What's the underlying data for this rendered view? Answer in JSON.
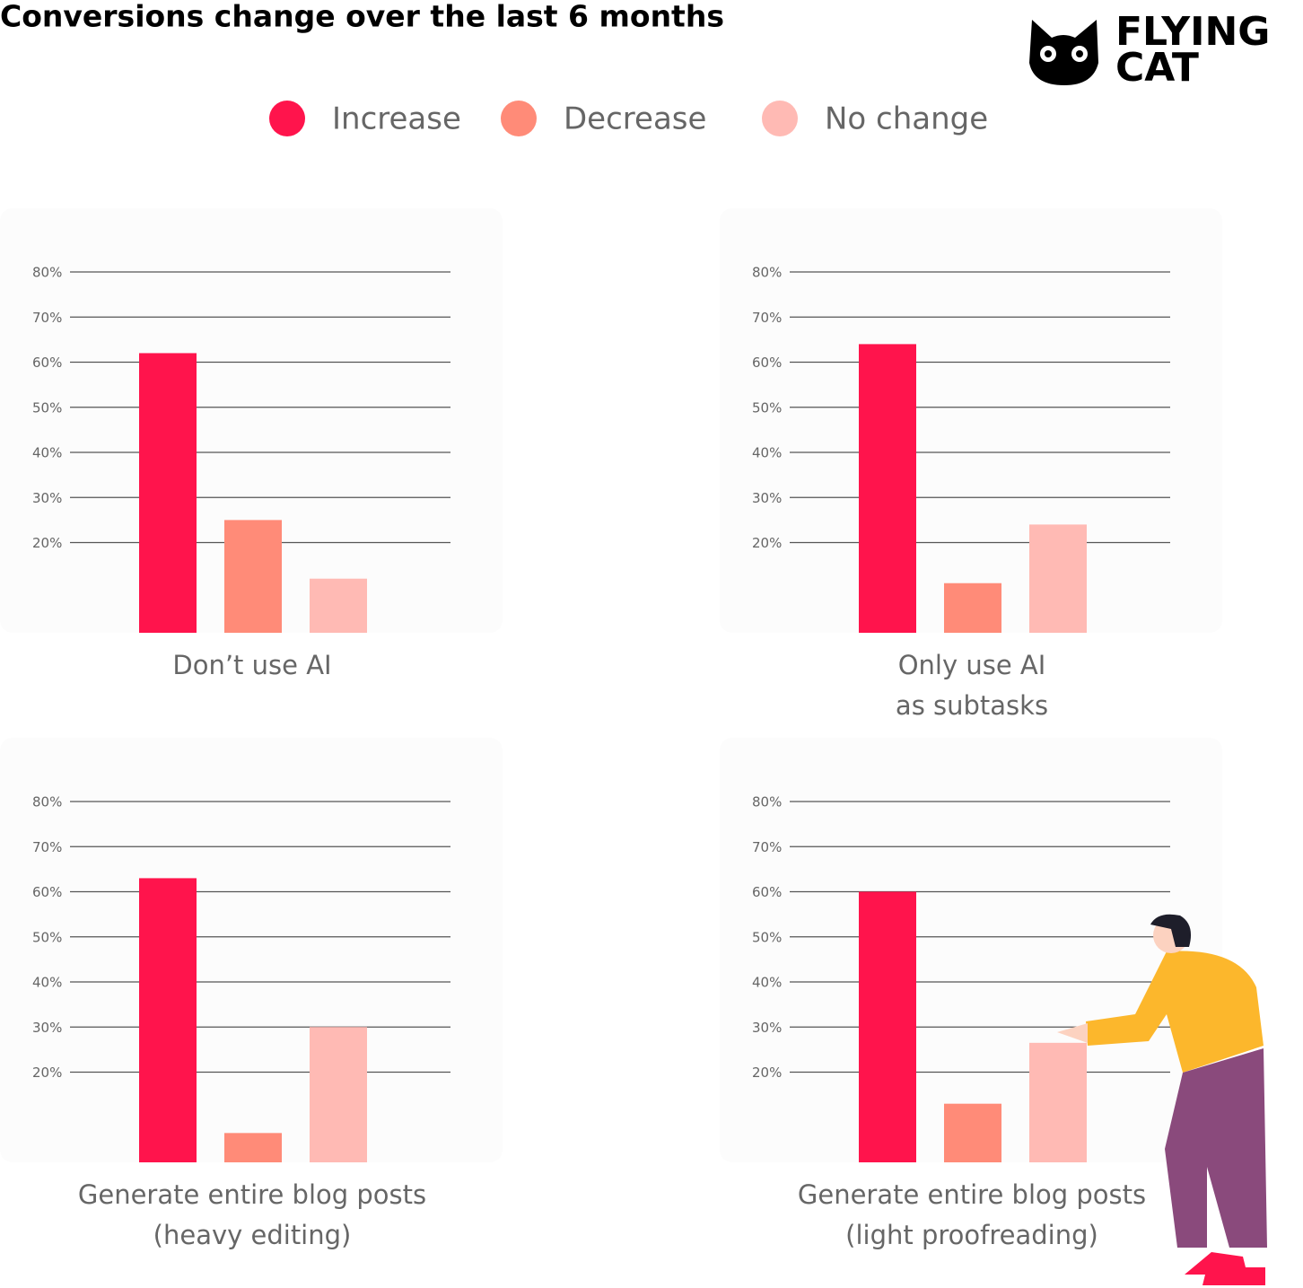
{
  "title": "Conversions change over the last 6 months",
  "brand": [
    "FLYING",
    "CAT"
  ],
  "legend": {
    "names": [
      "Increase",
      "Decrease",
      "No change"
    ],
    "colors": [
      "#ff144c",
      "#ff8b78",
      "#ffbab4"
    ]
  },
  "chart_data": [
    {
      "type": "bar",
      "title": [
        "Don’t use AI"
      ],
      "values": [
        62,
        25,
        12
      ],
      "ylim": [
        0,
        80
      ],
      "yticks": [
        {
          "value": 20,
          "label": "20%"
        },
        {
          "value": 30,
          "label": "30%"
        },
        {
          "value": 40,
          "label": "40%"
        },
        {
          "value": 50,
          "label": "50%"
        },
        {
          "value": 60,
          "label": "60%"
        },
        {
          "value": 70,
          "label": "70%"
        },
        {
          "value": 80,
          "label": "80%"
        }
      ],
      "grid": true
    },
    {
      "type": "bar",
      "title": [
        "Only use AI",
        "as subtasks"
      ],
      "values": [
        64,
        11,
        24
      ],
      "ylim": [
        0,
        80
      ],
      "yticks": [
        {
          "value": 20,
          "label": "20%"
        },
        {
          "value": 30,
          "label": "30%"
        },
        {
          "value": 40,
          "label": "40%"
        },
        {
          "value": 50,
          "label": "50%"
        },
        {
          "value": 60,
          "label": "60%"
        },
        {
          "value": 70,
          "label": "70%"
        },
        {
          "value": 80,
          "label": "80%"
        }
      ],
      "grid": true
    },
    {
      "type": "bar",
      "title": [
        "Generate entire blog posts",
        "(heavy editing)"
      ],
      "values": [
        63,
        6.5,
        30
      ],
      "ylim": [
        0,
        80
      ],
      "yticks": [
        {
          "value": 20,
          "label": "20%"
        },
        {
          "value": 30,
          "label": "30%"
        },
        {
          "value": 40,
          "label": "40%"
        },
        {
          "value": 50,
          "label": "50%"
        },
        {
          "value": 60,
          "label": "60%"
        },
        {
          "value": 70,
          "label": "70%"
        },
        {
          "value": 80,
          "label": "80%"
        }
      ],
      "grid": true
    },
    {
      "type": "bar",
      "title": [
        "Generate entire blog posts",
        "(light proofreading)"
      ],
      "values": [
        60,
        13,
        26.5
      ],
      "ylim": [
        0,
        80
      ],
      "yticks": [
        {
          "value": 20,
          "label": "20%"
        },
        {
          "value": 30,
          "label": "30%"
        },
        {
          "value": 40,
          "label": "40%"
        },
        {
          "value": 50,
          "label": "50%"
        },
        {
          "value": 60,
          "label": "60%"
        },
        {
          "value": 70,
          "label": "70%"
        },
        {
          "value": 80,
          "label": "80%"
        }
      ],
      "grid": true
    }
  ]
}
